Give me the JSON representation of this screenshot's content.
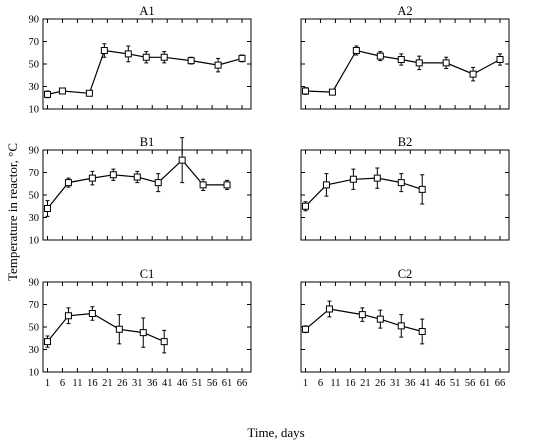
{
  "figure": {
    "ylabel": "Temperature in reactor, °C",
    "xlabel": "Time, days"
  },
  "chart_data": [
    {
      "type": "line",
      "title": "A1",
      "x": [
        1,
        6,
        15,
        20,
        28,
        34,
        40,
        49,
        58,
        66
      ],
      "y": [
        23,
        26,
        24,
        62,
        59,
        56,
        56,
        53,
        49,
        55
      ],
      "error": [
        3,
        2,
        2,
        6,
        7,
        5,
        5,
        3,
        6,
        3
      ],
      "ylim": [
        10,
        90
      ],
      "yticks": [
        10,
        30,
        50,
        70,
        90
      ],
      "xticks": [],
      "ylabel": "",
      "xlabel": ""
    },
    {
      "type": "line",
      "title": "A2",
      "x": [
        1,
        10,
        18,
        26,
        33,
        39,
        48,
        57,
        66
      ],
      "y": [
        26,
        25,
        62,
        57,
        54,
        51,
        51,
        41,
        54
      ],
      "error": [
        3,
        2,
        4,
        4,
        5,
        6,
        5,
        6,
        5
      ],
      "ylim": [
        10,
        90
      ],
      "yticks": [],
      "xticks": [],
      "ylabel": "",
      "xlabel": ""
    },
    {
      "type": "line",
      "title": "B1",
      "x": [
        1,
        8,
        16,
        23,
        31,
        38,
        46,
        53,
        61
      ],
      "y": [
        38,
        61,
        65,
        68,
        66,
        61,
        81,
        59,
        59
      ],
      "error": [
        7,
        4,
        6,
        5,
        5,
        8,
        20,
        5,
        4
      ],
      "ylim": [
        10,
        90
      ],
      "yticks": [
        10,
        30,
        50,
        70,
        90
      ],
      "xticks": [],
      "ylabel": "",
      "xlabel": ""
    },
    {
      "type": "line",
      "title": "B2",
      "x": [
        1,
        8,
        17,
        25,
        33,
        40
      ],
      "y": [
        40,
        59,
        64,
        65,
        61,
        55
      ],
      "error": [
        4,
        10,
        9,
        9,
        8,
        13
      ],
      "ylim": [
        10,
        90
      ],
      "yticks": [],
      "xticks": [],
      "ylabel": "",
      "xlabel": ""
    },
    {
      "type": "line",
      "title": "C1",
      "x": [
        1,
        8,
        16,
        25,
        33,
        40
      ],
      "y": [
        37,
        60,
        62,
        48,
        45,
        37
      ],
      "error": [
        5,
        7,
        6,
        13,
        13,
        10
      ],
      "ylim": [
        10,
        90
      ],
      "yticks": [
        10,
        30,
        50,
        70,
        90
      ],
      "xticks": [
        1,
        6,
        11,
        16,
        21,
        26,
        31,
        36,
        41,
        46,
        51,
        56,
        61,
        66
      ],
      "ylabel": "",
      "xlabel": ""
    },
    {
      "type": "line",
      "title": "C2",
      "x": [
        1,
        9,
        20,
        26,
        33,
        40
      ],
      "y": [
        48,
        66,
        61,
        57,
        51,
        46
      ],
      "error": [
        3,
        7,
        6,
        8,
        10,
        11
      ],
      "ylim": [
        10,
        90
      ],
      "yticks": [],
      "xticks": [
        1,
        6,
        11,
        16,
        21,
        26,
        31,
        36,
        41,
        46,
        51,
        56,
        61,
        66
      ],
      "ylabel": "",
      "xlabel": ""
    }
  ]
}
